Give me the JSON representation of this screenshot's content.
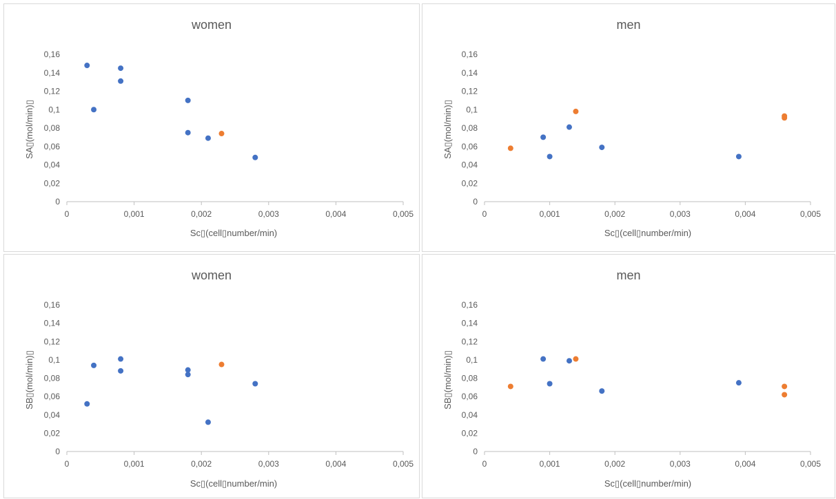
{
  "colors": {
    "blue": "#4472c4",
    "orange": "#ed7d31"
  },
  "chart_data": [
    {
      "type": "scatter",
      "title": "women",
      "xlabel": "Sc▯(cell▯number/min)",
      "ylabel": "SA▯(mol/min)▯",
      "xlim": [
        0,
        0.005
      ],
      "ylim": [
        0,
        0.16
      ],
      "x_ticks": [
        "0",
        "0,001",
        "0,002",
        "0,003",
        "0,004",
        "0,005"
      ],
      "y_ticks": [
        "0",
        "0,02",
        "0,04",
        "0,06",
        "0,08",
        "0,1",
        "0,12",
        "0,14",
        "0,16"
      ],
      "grid": false,
      "series": [
        {
          "color": "#4472c4",
          "points": [
            [
              0.0003,
              0.148
            ],
            [
              0.0004,
              0.1
            ],
            [
              0.0008,
              0.145
            ],
            [
              0.0008,
              0.131
            ],
            [
              0.0018,
              0.11
            ],
            [
              0.0018,
              0.075
            ],
            [
              0.0021,
              0.069
            ],
            [
              0.0028,
              0.048
            ]
          ]
        },
        {
          "color": "#ed7d31",
          "points": [
            [
              0.0023,
              0.074
            ]
          ]
        }
      ]
    },
    {
      "type": "scatter",
      "title": "men",
      "xlabel": "Sc▯(cell▯number/min)",
      "ylabel": "SA▯(mol/min)▯",
      "xlim": [
        0,
        0.005
      ],
      "ylim": [
        0,
        0.16
      ],
      "x_ticks": [
        "0",
        "0,001",
        "0,002",
        "0,003",
        "0,004",
        "0,005"
      ],
      "y_ticks": [
        "0",
        "0,02",
        "0,04",
        "0,06",
        "0,08",
        "0,1",
        "0,12",
        "0,14",
        "0,16"
      ],
      "grid": false,
      "series": [
        {
          "color": "#4472c4",
          "points": [
            [
              0.0009,
              0.07
            ],
            [
              0.001,
              0.049
            ],
            [
              0.0013,
              0.081
            ],
            [
              0.0018,
              0.059
            ],
            [
              0.0039,
              0.049
            ]
          ]
        },
        {
          "color": "#ed7d31",
          "points": [
            [
              0.0004,
              0.058
            ],
            [
              0.0014,
              0.098
            ],
            [
              0.0046,
              0.093
            ],
            [
              0.0046,
              0.091
            ]
          ]
        }
      ]
    },
    {
      "type": "scatter",
      "title": "women",
      "xlabel": "Sc▯(cell▯number/min)",
      "ylabel": "SB▯(mol/min)▯",
      "xlim": [
        0,
        0.005
      ],
      "ylim": [
        0,
        0.16
      ],
      "x_ticks": [
        "0",
        "0,001",
        "0,002",
        "0,003",
        "0,004",
        "0,005"
      ],
      "y_ticks": [
        "0",
        "0,02",
        "0,04",
        "0,06",
        "0,08",
        "0,1",
        "0,12",
        "0,14",
        "0,16"
      ],
      "grid": false,
      "series": [
        {
          "color": "#4472c4",
          "points": [
            [
              0.0003,
              0.052
            ],
            [
              0.0004,
              0.094
            ],
            [
              0.0008,
              0.101
            ],
            [
              0.0008,
              0.088
            ],
            [
              0.0018,
              0.089
            ],
            [
              0.0018,
              0.084
            ],
            [
              0.0021,
              0.032
            ],
            [
              0.0028,
              0.074
            ]
          ]
        },
        {
          "color": "#ed7d31",
          "points": [
            [
              0.0023,
              0.095
            ]
          ]
        }
      ]
    },
    {
      "type": "scatter",
      "title": "men",
      "xlabel": "Sc▯(cell▯number/min)",
      "ylabel": "SB▯(mol/min)▯",
      "xlim": [
        0,
        0.005
      ],
      "ylim": [
        0,
        0.16
      ],
      "x_ticks": [
        "0",
        "0,001",
        "0,002",
        "0,003",
        "0,004",
        "0,005"
      ],
      "y_ticks": [
        "0",
        "0,02",
        "0,04",
        "0,06",
        "0,08",
        "0,1",
        "0,12",
        "0,14",
        "0,16"
      ],
      "grid": false,
      "series": [
        {
          "color": "#4472c4",
          "points": [
            [
              0.0009,
              0.101
            ],
            [
              0.001,
              0.074
            ],
            [
              0.0013,
              0.099
            ],
            [
              0.0018,
              0.066
            ],
            [
              0.0039,
              0.075
            ]
          ]
        },
        {
          "color": "#ed7d31",
          "points": [
            [
              0.0004,
              0.071
            ],
            [
              0.0014,
              0.101
            ],
            [
              0.0046,
              0.071
            ],
            [
              0.0046,
              0.062
            ]
          ]
        }
      ]
    }
  ]
}
